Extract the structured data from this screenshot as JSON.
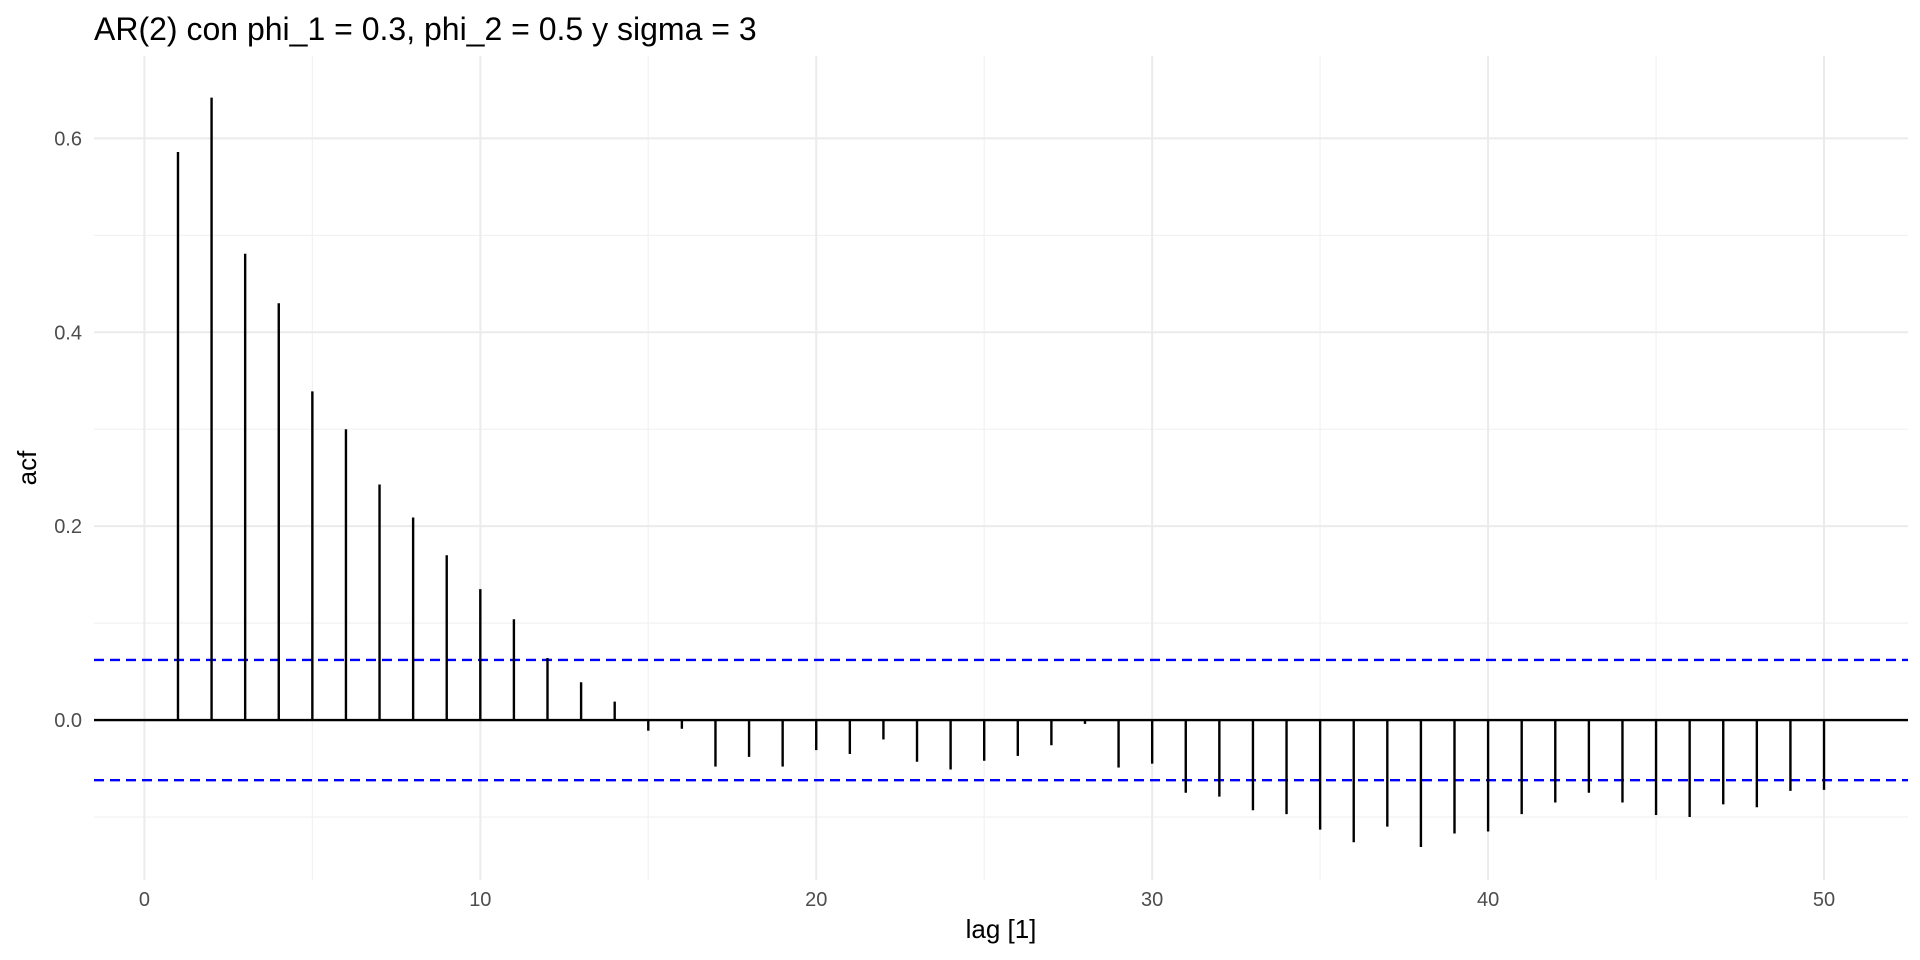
{
  "chart_data": {
    "type": "bar",
    "title": "AR(2) con phi_1 = 0.3, phi_2 = 0.5 y sigma = 3",
    "xlabel": "lag [1]",
    "ylabel": "acf",
    "xlim": [
      -1.5,
      52.5
    ],
    "ylim": [
      -0.165,
      0.685
    ],
    "x_ticks": [
      0,
      10,
      20,
      30,
      40,
      50
    ],
    "y_ticks": [
      0.0,
      0.2,
      0.4,
      0.6
    ],
    "grid": true,
    "ci_bounds": [
      0.062,
      -0.062
    ],
    "ci_color": "#0000ff",
    "bar_color": "#000000",
    "lags": [
      1,
      2,
      3,
      4,
      5,
      6,
      7,
      8,
      9,
      10,
      11,
      12,
      13,
      14,
      15,
      16,
      17,
      18,
      19,
      20,
      21,
      22,
      23,
      24,
      25,
      26,
      27,
      28,
      29,
      30,
      31,
      32,
      33,
      34,
      35,
      36,
      37,
      38,
      39,
      40,
      41,
      42,
      43,
      44,
      45,
      46,
      47,
      48,
      49,
      50
    ],
    "values": [
      0.586,
      0.642,
      0.481,
      0.43,
      0.339,
      0.3,
      0.243,
      0.209,
      0.17,
      0.135,
      0.104,
      0.064,
      0.039,
      0.019,
      -0.011,
      -0.009,
      -0.048,
      -0.038,
      -0.048,
      -0.031,
      -0.035,
      -0.02,
      -0.043,
      -0.051,
      -0.042,
      -0.037,
      -0.026,
      -0.004,
      -0.049,
      -0.045,
      -0.075,
      -0.079,
      -0.093,
      -0.097,
      -0.113,
      -0.126,
      -0.11,
      -0.131,
      -0.117,
      -0.115,
      -0.097,
      -0.085,
      -0.075,
      -0.085,
      -0.098,
      -0.1,
      -0.087,
      -0.09,
      -0.073,
      -0.072
    ]
  }
}
